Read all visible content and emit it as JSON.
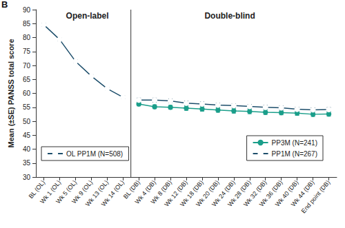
{
  "chart_data": {
    "type": "line",
    "title": "B",
    "annotations": [
      "Open-label",
      "Double-blind"
    ],
    "y_label": "Mean (±SE) PANSS total score",
    "categories": [
      "BL (OL)",
      "Wk 1 (OL)",
      "Wk 5 (OL)",
      "Wk 9 (OL)",
      "Wk 13 (OL)",
      "Wk 14 (OL)",
      "BL (DB)",
      "Wk 4 (DB)",
      "Wk 8 (DB)",
      "Wk 12 (DB)",
      "Wk 18 (DB)",
      "Wk 20 (DB)",
      "Wk 24 (DB)",
      "Wk 28 (DB)",
      "Wk 32 (DB)",
      "Wk 36 (DB)",
      "Wk 40 (DB)",
      "Wk 44 (DB)",
      "End point (DB)"
    ],
    "series": [
      {
        "name": "OL PP1M (N=508)",
        "color": "#1d4e6b",
        "marker": "open circle",
        "values": [
          84.6,
          79.3,
          71.5,
          66.2,
          61.7,
          58.6,
          null,
          null,
          null,
          null,
          null,
          null,
          null,
          null,
          null,
          null,
          null,
          null,
          null
        ],
        "errors": [
          0.5,
          0.5,
          0.5,
          0.5,
          0.5,
          0.5,
          null,
          null,
          null,
          null,
          null,
          null,
          null,
          null,
          null,
          null,
          null,
          null,
          null
        ]
      },
      {
        "name": "PP3M (N=241)",
        "color": "#1a9e8a",
        "marker": "filled circle",
        "values": [
          null,
          null,
          null,
          null,
          null,
          null,
          56.2,
          55.2,
          55.0,
          54.7,
          54.4,
          54.0,
          53.7,
          53.5,
          53.2,
          53.1,
          52.9,
          52.5,
          52.6
        ],
        "errors": [
          null,
          null,
          null,
          null,
          null,
          null,
          0.7,
          0.7,
          0.7,
          0.8,
          0.8,
          0.8,
          0.8,
          0.8,
          0.8,
          0.8,
          0.8,
          0.8,
          0.8
        ]
      },
      {
        "name": "PP1M (N=267)",
        "color": "#1d4e6b",
        "marker": "open circle",
        "values": [
          null,
          null,
          null,
          null,
          null,
          null,
          57.6,
          57.6,
          57.3,
          56.5,
          56.2,
          55.8,
          55.6,
          55.3,
          55.0,
          54.8,
          54.3,
          54.1,
          54.2
        ],
        "errors": [
          null,
          null,
          null,
          null,
          null,
          null,
          0.7,
          0.7,
          0.7,
          0.7,
          0.7,
          0.7,
          0.7,
          0.7,
          0.7,
          0.7,
          0.7,
          0.7,
          0.7
        ]
      }
    ],
    "ylim": [
      30,
      90
    ],
    "yticks": [
      30,
      35,
      40,
      45,
      50,
      55,
      60,
      65,
      70,
      75,
      80,
      85,
      90
    ],
    "grid": false,
    "legend": "bottom"
  }
}
